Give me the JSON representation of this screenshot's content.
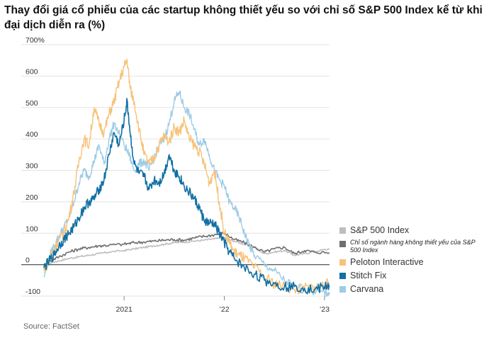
{
  "title": "Thay đổi giá cổ phiếu của các startup không thiết yếu so với chỉ số S&P 500 Index kể từ khi đại dịch diễn ra (%)",
  "source": "Source: FactSet",
  "colors": {
    "sp500": "#bdbdbd",
    "nonessential": "#6f6f6f",
    "peloton": "#f7c27a",
    "stitchfix": "#1170a4",
    "carvana": "#9dcbe6",
    "grid": "#e3e3e3",
    "zero": "#555555"
  },
  "legend": [
    {
      "key": "sp500",
      "label": "S&P 500 Index",
      "small": false
    },
    {
      "key": "nonessential",
      "label": "Chỉ số ngành hàng không thiết yếu của S&P 500 Index",
      "small": true
    },
    {
      "key": "peloton",
      "label": "Peloton Interactive",
      "small": false
    },
    {
      "key": "stitchfix",
      "label": "Stitch Fix",
      "small": false
    },
    {
      "key": "carvana",
      "label": "Carvana",
      "small": false
    }
  ],
  "chart_data": {
    "type": "line",
    "title": "Thay đổi giá cổ phiếu của các startup không thiết yếu so với chỉ số S&P 500 Index kể từ khi đại dịch diễn ra (%)",
    "xlabel": "",
    "ylabel": "",
    "ylim": [
      -100,
      700
    ],
    "xlim": [
      2020.2,
      2023.05
    ],
    "y_ticks": [
      {
        "value": 700,
        "label": "700%"
      },
      {
        "value": 600,
        "label": "600"
      },
      {
        "value": 500,
        "label": "500"
      },
      {
        "value": 400,
        "label": "400"
      },
      {
        "value": 300,
        "label": "300"
      },
      {
        "value": 200,
        "label": "200"
      },
      {
        "value": 100,
        "label": "100"
      },
      {
        "value": 0,
        "label": "0"
      },
      {
        "value": -100,
        "label": "-100"
      }
    ],
    "x_ticks": [
      {
        "value": 2021.0,
        "label": "2021"
      },
      {
        "value": 2022.0,
        "label": "’22"
      },
      {
        "value": 2023.0,
        "label": "’23"
      }
    ],
    "series": [
      {
        "key": "sp500",
        "name": "S&P 500 Index",
        "x": [
          2020.2,
          2020.25,
          2020.35,
          2020.45,
          2020.55,
          2020.65,
          2020.75,
          2020.85,
          2021.0,
          2021.1,
          2021.2,
          2021.3,
          2021.4,
          2021.5,
          2021.6,
          2021.7,
          2021.8,
          2021.9,
          2022.0,
          2022.1,
          2022.2,
          2022.3,
          2022.4,
          2022.5,
          2022.6,
          2022.7,
          2022.8,
          2022.9,
          2023.05
        ],
        "y": [
          -15,
          5,
          12,
          20,
          25,
          30,
          35,
          40,
          45,
          50,
          55,
          60,
          65,
          70,
          72,
          75,
          78,
          82,
          85,
          75,
          65,
          55,
          35,
          40,
          45,
          30,
          35,
          42,
          50
        ]
      },
      {
        "key": "nonessential",
        "name": "Chỉ số ngành hàng không thiết yếu của S&P 500 Index",
        "x": [
          2020.2,
          2020.25,
          2020.35,
          2020.45,
          2020.55,
          2020.65,
          2020.75,
          2020.85,
          2021.0,
          2021.1,
          2021.2,
          2021.3,
          2021.4,
          2021.5,
          2021.6,
          2021.7,
          2021.8,
          2021.9,
          2022.0,
          2022.1,
          2022.2,
          2022.3,
          2022.4,
          2022.5,
          2022.6,
          2022.7,
          2022.8,
          2022.9,
          2023.05
        ],
        "y": [
          -10,
          10,
          25,
          40,
          50,
          55,
          60,
          62,
          65,
          70,
          72,
          75,
          78,
          80,
          78,
          85,
          90,
          95,
          100,
          80,
          70,
          55,
          40,
          50,
          55,
          35,
          45,
          40,
          38
        ]
      },
      {
        "key": "carvana",
        "name": "Carvana",
        "x": [
          2020.2,
          2020.25,
          2020.3,
          2020.35,
          2020.4,
          2020.45,
          2020.5,
          2020.55,
          2020.6,
          2020.65,
          2020.7,
          2020.75,
          2020.8,
          2020.85,
          2020.9,
          2021.0,
          2021.05,
          2021.1,
          2021.15,
          2021.2,
          2021.25,
          2021.3,
          2021.35,
          2021.4,
          2021.45,
          2021.5,
          2021.55,
          2021.6,
          2021.65,
          2021.7,
          2021.75,
          2021.8,
          2021.85,
          2021.9,
          2021.95,
          2022.0,
          2022.05,
          2022.1,
          2022.15,
          2022.2,
          2022.25,
          2022.3,
          2022.4,
          2022.5,
          2022.6,
          2022.7,
          2022.8,
          2022.9,
          2023.0,
          2023.05
        ],
        "y": [
          -40,
          20,
          60,
          90,
          120,
          150,
          200,
          260,
          300,
          280,
          330,
          380,
          320,
          400,
          450,
          380,
          350,
          300,
          320,
          330,
          300,
          340,
          380,
          400,
          450,
          520,
          550,
          500,
          480,
          430,
          380,
          400,
          350,
          300,
          270,
          250,
          200,
          180,
          150,
          100,
          60,
          30,
          0,
          -20,
          -50,
          -70,
          -80,
          -85,
          -90,
          -88
        ]
      },
      {
        "key": "peloton",
        "name": "Peloton Interactive",
        "x": [
          2020.2,
          2020.25,
          2020.3,
          2020.35,
          2020.4,
          2020.45,
          2020.5,
          2020.55,
          2020.6,
          2020.65,
          2020.7,
          2020.75,
          2020.8,
          2020.85,
          2020.9,
          2020.95,
          2021.0,
          2021.03,
          2021.06,
          2021.1,
          2021.15,
          2021.2,
          2021.25,
          2021.3,
          2021.35,
          2021.4,
          2021.45,
          2021.5,
          2021.55,
          2021.6,
          2021.65,
          2021.7,
          2021.75,
          2021.8,
          2021.85,
          2021.9,
          2021.95,
          2022.0,
          2022.05,
          2022.1,
          2022.15,
          2022.2,
          2022.3,
          2022.4,
          2022.5,
          2022.6,
          2022.7,
          2022.8,
          2022.9,
          2023.0,
          2023.05
        ],
        "y": [
          -20,
          20,
          50,
          80,
          100,
          150,
          230,
          330,
          400,
          380,
          500,
          450,
          420,
          480,
          520,
          580,
          630,
          650,
          560,
          520,
          430,
          350,
          320,
          340,
          380,
          410,
          390,
          440,
          420,
          460,
          400,
          380,
          360,
          320,
          260,
          300,
          200,
          100,
          70,
          40,
          30,
          20,
          -10,
          -40,
          -60,
          -70,
          -80,
          -75,
          -70,
          -65,
          -60
        ]
      },
      {
        "key": "stitchfix",
        "name": "Stitch Fix",
        "x": [
          2020.2,
          2020.25,
          2020.3,
          2020.35,
          2020.4,
          2020.45,
          2020.5,
          2020.55,
          2020.6,
          2020.65,
          2020.7,
          2020.75,
          2020.8,
          2020.85,
          2020.9,
          2020.95,
          2021.0,
          2021.03,
          2021.06,
          2021.1,
          2021.15,
          2021.2,
          2021.25,
          2021.3,
          2021.35,
          2021.4,
          2021.45,
          2021.5,
          2021.55,
          2021.6,
          2021.65,
          2021.7,
          2021.75,
          2021.8,
          2021.85,
          2021.9,
          2021.95,
          2022.0,
          2022.05,
          2022.1,
          2022.2,
          2022.3,
          2022.4,
          2022.5,
          2022.6,
          2022.7,
          2022.8,
          2022.9,
          2023.0,
          2023.05
        ],
        "y": [
          -10,
          10,
          30,
          60,
          80,
          100,
          120,
          150,
          180,
          200,
          210,
          240,
          270,
          350,
          420,
          380,
          460,
          520,
          420,
          320,
          290,
          280,
          240,
          270,
          260,
          290,
          350,
          300,
          280,
          250,
          230,
          210,
          180,
          140,
          130,
          130,
          100,
          70,
          40,
          20,
          -10,
          -30,
          -50,
          -60,
          -70,
          -70,
          -75,
          -80,
          -70,
          -65
        ]
      }
    ]
  }
}
